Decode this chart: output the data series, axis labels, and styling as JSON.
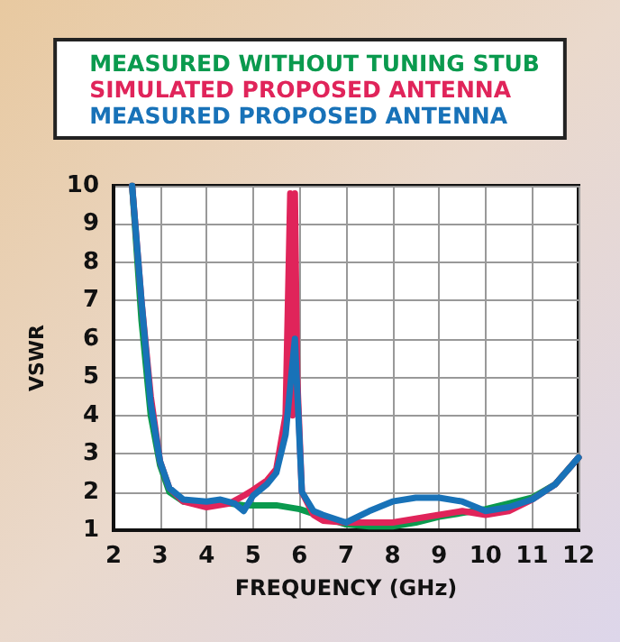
{
  "chart_data": {
    "type": "line",
    "xlabel": "FREQUENCY (GHz)",
    "ylabel": "VSWR",
    "xlim": [
      2,
      12
    ],
    "xticks": [
      2,
      3,
      4,
      5,
      6,
      7,
      8,
      9,
      10,
      11,
      12
    ],
    "ylim": [
      1,
      10
    ],
    "yticks": [
      1,
      2,
      3,
      4,
      5,
      6,
      7,
      8,
      9,
      10
    ],
    "grid": true,
    "legend": "top",
    "marker": "none",
    "line_style": "solid",
    "series": [
      {
        "name": "MEASURED WITHOUT TUNING STUB",
        "color": "#0a9a4e",
        "x": [
          2.4,
          2.6,
          2.8,
          3,
          3.2,
          3.5,
          4,
          4.5,
          4.8,
          5,
          5.5,
          6,
          6.5,
          7,
          7.5,
          8,
          8.5,
          9,
          9.5,
          10,
          10.5,
          11,
          11.5,
          12
        ],
        "values": [
          10,
          6.5,
          4,
          2.7,
          2,
          1.75,
          1.7,
          1.7,
          1.65,
          1.65,
          1.65,
          1.55,
          1.35,
          1.15,
          1.1,
          1.1,
          1.2,
          1.35,
          1.45,
          1.55,
          1.7,
          1.85,
          2.2,
          2.9
        ]
      },
      {
        "name": "SIMULATED PROPOSED ANTENNA",
        "color": "#e0245a",
        "x": [
          2.4,
          2.6,
          2.8,
          3,
          3.2,
          3.5,
          4,
          4.5,
          4.8,
          5,
          5.3,
          5.5,
          5.7,
          5.8,
          5.85,
          5.9,
          5.95,
          6.05,
          6.3,
          6.5,
          7,
          7.5,
          8,
          8.5,
          9,
          9.5,
          10,
          10.5,
          11,
          11.5,
          12
        ],
        "values": [
          10,
          7,
          4.5,
          2.8,
          2.1,
          1.75,
          1.6,
          1.7,
          1.9,
          2.05,
          2.3,
          2.6,
          4,
          9.8,
          4,
          9.8,
          5,
          2,
          1.4,
          1.25,
          1.2,
          1.2,
          1.2,
          1.3,
          1.4,
          1.5,
          1.4,
          1.5,
          1.8,
          2.2,
          2.9
        ]
      },
      {
        "name": "MEASURED PROPOSED ANTENNA",
        "color": "#1872b8",
        "x": [
          2.4,
          2.6,
          2.8,
          3,
          3.2,
          3.5,
          4,
          4.3,
          4.6,
          4.8,
          5,
          5.3,
          5.5,
          5.7,
          5.9,
          6.05,
          6.3,
          6.5,
          7,
          7.5,
          8,
          8.5,
          9,
          9.5,
          10,
          10.5,
          11,
          11.5,
          12
        ],
        "values": [
          10,
          7,
          4.3,
          2.8,
          2.1,
          1.8,
          1.75,
          1.8,
          1.7,
          1.5,
          1.9,
          2.2,
          2.5,
          3.5,
          6,
          2,
          1.5,
          1.4,
          1.2,
          1.5,
          1.75,
          1.85,
          1.85,
          1.75,
          1.5,
          1.6,
          1.8,
          2.2,
          2.9
        ]
      }
    ]
  }
}
